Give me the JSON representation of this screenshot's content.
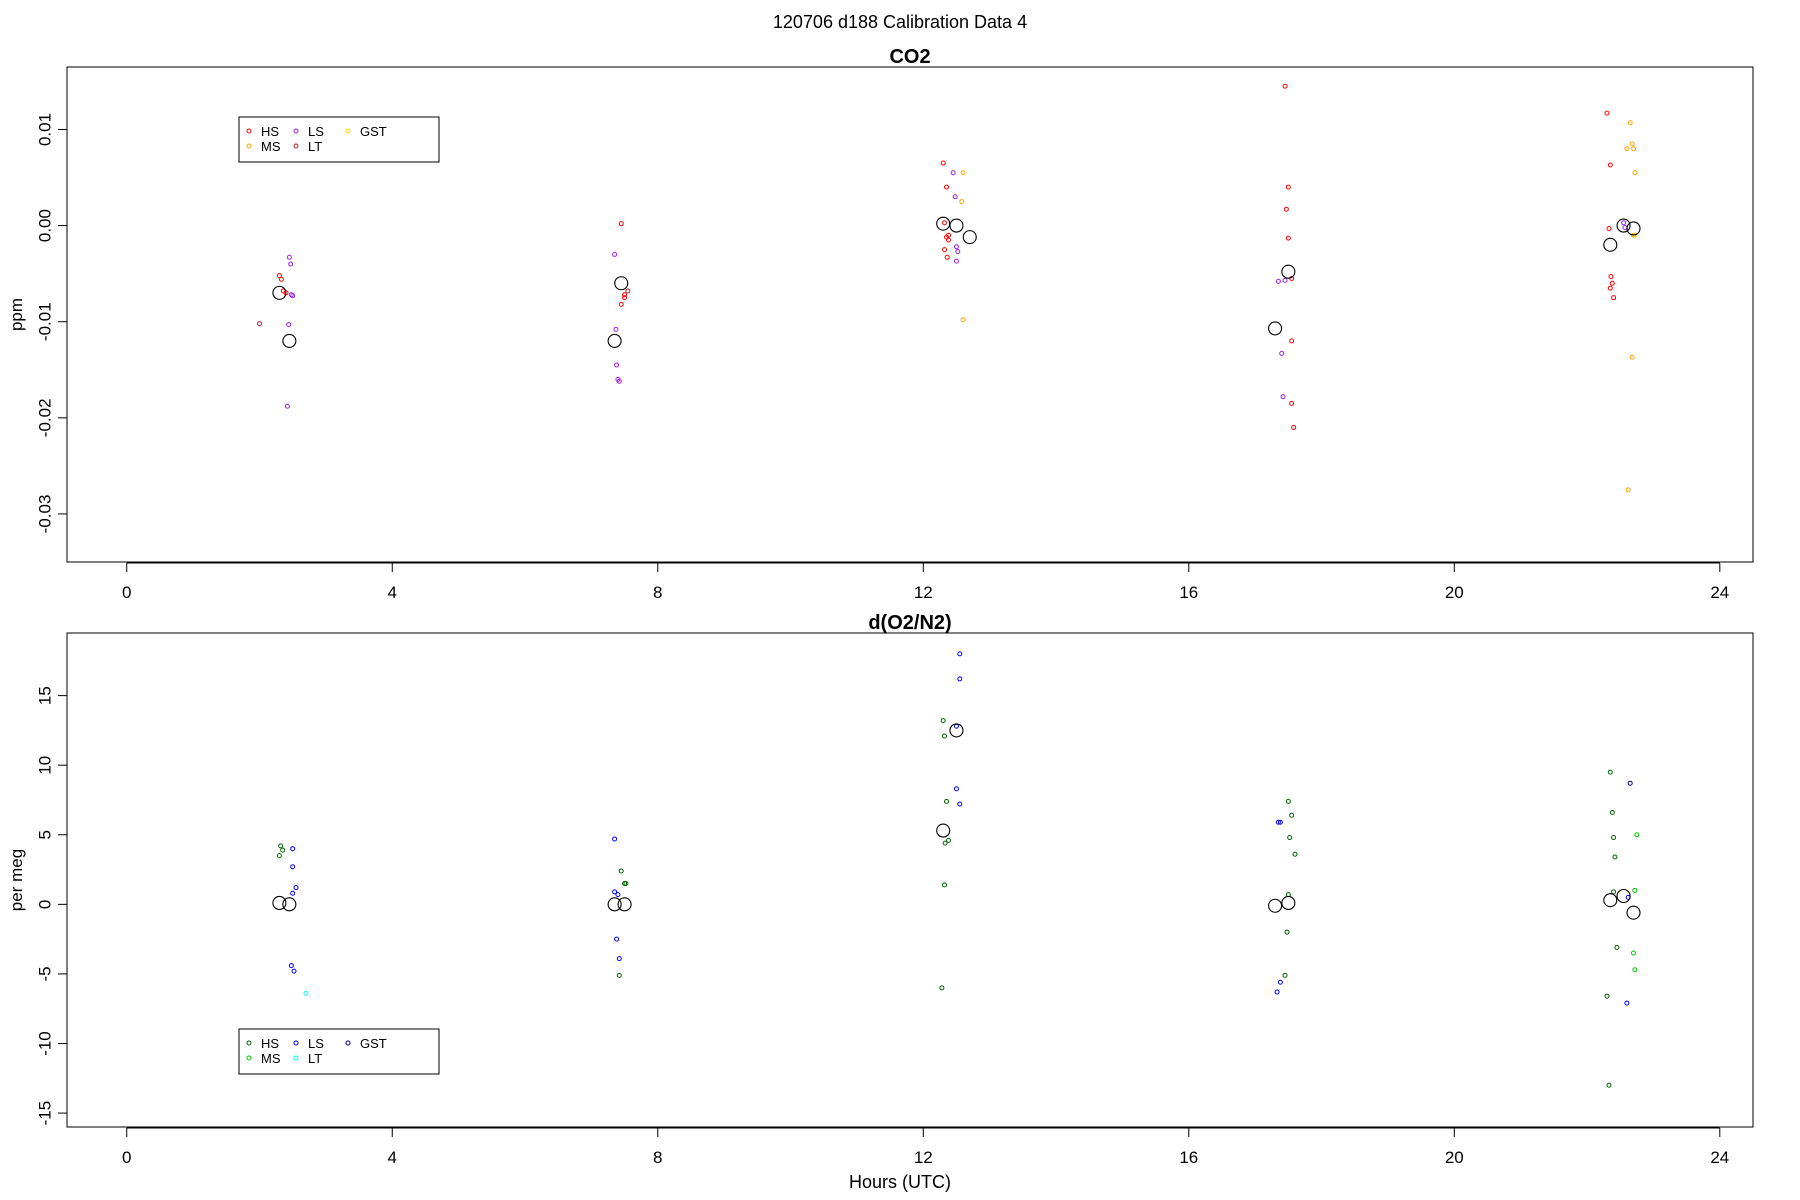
{
  "figure_title": "120706   d188   Calibration Data 4",
  "x_axis_label": "Hours (UTC)",
  "chart_data": [
    {
      "type": "scatter",
      "title": "CO2",
      "xlabel": "",
      "ylabel": "ppm",
      "xlim": [
        -0.9,
        24.5
      ],
      "ylim": [
        -0.035,
        0.0165
      ],
      "x_ticks": [
        "0",
        "4",
        "8",
        "12",
        "16",
        "20",
        "24"
      ],
      "x_tick_values": [
        0,
        4,
        8,
        12,
        16,
        20,
        24
      ],
      "y_ticks": [
        "-0.03",
        "-0.02",
        "-0.01",
        "0.00",
        "0.01"
      ],
      "y_tick_values": [
        -0.03,
        -0.02,
        -0.01,
        0.0,
        0.01
      ],
      "legend": {
        "position": "top-left",
        "entries": [
          {
            "name": "HS",
            "color": "#ff0000"
          },
          {
            "name": "MS",
            "color": "#ffa500"
          },
          {
            "name": "LS",
            "color": "#a020f0"
          },
          {
            "name": "LT",
            "color": "#b22222"
          },
          {
            "name": "GST",
            "color": "#ffd700"
          }
        ]
      },
      "series": [
        {
          "name": "HS",
          "color": "#ff0000",
          "x": [
            2.3,
            2.33,
            2.36,
            2.4,
            7.45,
            7.5,
            7.45,
            7.5,
            12.3,
            12.35,
            12.32,
            12.35,
            12.38,
            12.32,
            12.36,
            12.38,
            17.45,
            17.5,
            17.47,
            17.5,
            17.55,
            17.55,
            17.58,
            17.55,
            22.3,
            22.35,
            22.33,
            22.36,
            22.38,
            22.35,
            22.4
          ],
          "y": [
            -0.0052,
            -0.0056,
            -0.0068,
            -0.007,
            0.0002,
            -0.0075,
            -0.0082,
            -0.0072,
            0.0065,
            0.004,
            0.0003,
            -0.0012,
            -0.0015,
            -0.0025,
            -0.0033,
            -0.001,
            0.0145,
            0.004,
            0.0017,
            -0.0013,
            -0.012,
            -0.0185,
            -0.021,
            -0.0055,
            0.0117,
            0.0063,
            -0.0003,
            -0.0053,
            -0.006,
            -0.0065,
            -0.0075
          ]
        },
        {
          "name": "MS",
          "color": "#ffa500",
          "x": [
            12.6,
            12.58,
            12.6,
            22.65,
            22.68,
            22.7,
            22.72,
            22.7,
            22.68,
            22.62,
            22.6
          ],
          "y": [
            0.0055,
            0.0025,
            -0.0098,
            0.0107,
            0.0085,
            0.008,
            0.0055,
            -0.001,
            -0.0137,
            -0.0275,
            0.008
          ]
        },
        {
          "name": "LS",
          "color": "#a020f0",
          "x": [
            2.45,
            2.47,
            2.48,
            2.5,
            2.44,
            2.42,
            7.35,
            7.37,
            7.38,
            7.4,
            7.42,
            12.45,
            12.48,
            12.5,
            12.52,
            12.5,
            17.35,
            17.4,
            17.42,
            17.45,
            22.55,
            22.57
          ],
          "y": [
            -0.0033,
            -0.004,
            -0.0072,
            -0.0073,
            -0.0103,
            -0.0188,
            -0.003,
            -0.0108,
            -0.0145,
            -0.016,
            -0.0162,
            0.0055,
            0.003,
            -0.0022,
            -0.0027,
            -0.0037,
            -0.0058,
            -0.0133,
            -0.0178,
            -0.0057,
            0.0003,
            -0.0002
          ]
        },
        {
          "name": "LT",
          "color": "#b22222",
          "x": [
            2.0,
            7.55
          ],
          "y": [
            -0.0102,
            -0.0068
          ]
        },
        {
          "name": "GST",
          "color": "#ffd700",
          "x": [
            22.72
          ],
          "y": [
            -0.001
          ]
        },
        {
          "name": "",
          "color": "#000000",
          "large": true,
          "x": [
            2.3,
            2.45,
            7.35,
            7.45,
            12.3,
            12.5,
            12.7,
            17.3,
            17.5,
            22.35,
            22.55,
            22.7
          ],
          "y": [
            -0.007,
            -0.012,
            -0.012,
            -0.006,
            0.0002,
            0.0,
            -0.0012,
            -0.0107,
            -0.0048,
            -0.002,
            0.0,
            -0.0003
          ]
        }
      ]
    },
    {
      "type": "scatter",
      "title": "d(O2/N2)",
      "xlabel": "Hours (UTC)",
      "ylabel": "per meg",
      "xlim": [
        -0.9,
        24.5
      ],
      "ylim": [
        -16,
        19.5
      ],
      "x_ticks": [
        "0",
        "4",
        "8",
        "12",
        "16",
        "20",
        "24"
      ],
      "x_tick_values": [
        0,
        4,
        8,
        12,
        16,
        20,
        24
      ],
      "y_ticks": [
        "-15",
        "-10",
        "-5",
        "0",
        "5",
        "10",
        "15"
      ],
      "y_tick_values": [
        -15,
        -10,
        -5,
        0,
        5,
        10,
        15
      ],
      "legend": {
        "position": "bottom-left",
        "entries": [
          {
            "name": "HS",
            "color": "#006400"
          },
          {
            "name": "MS",
            "color": "#00c800"
          },
          {
            "name": "LS",
            "color": "#0000ff"
          },
          {
            "name": "LT",
            "color": "#00ffff"
          },
          {
            "name": "GST",
            "color": "#000080"
          }
        ]
      },
      "series": [
        {
          "name": "HS",
          "color": "#006400",
          "x": [
            2.3,
            2.32,
            2.35,
            7.45,
            7.5,
            7.52,
            7.42,
            12.3,
            12.32,
            12.35,
            12.38,
            12.33,
            12.32,
            12.28,
            17.5,
            17.55,
            17.52,
            17.6,
            17.5,
            17.48,
            17.45,
            22.35,
            22.38,
            22.4,
            22.42,
            22.4,
            22.45,
            22.3,
            22.33
          ],
          "y": [
            3.5,
            4.2,
            3.9,
            2.4,
            1.5,
            1.5,
            -5.1,
            13.2,
            12.1,
            7.4,
            4.6,
            4.4,
            1.4,
            -6.0,
            7.4,
            6.4,
            4.8,
            3.6,
            0.7,
            -2.0,
            -5.1,
            9.5,
            6.6,
            4.8,
            3.4,
            0.9,
            -3.1,
            -6.6,
            -13.0
          ]
        },
        {
          "name": "MS",
          "color": "#00c800",
          "x": [
            22.75,
            22.72,
            22.7,
            22.72
          ],
          "y": [
            5.0,
            1.0,
            -3.5,
            -4.7
          ]
        },
        {
          "name": "LS",
          "color": "#0000ff",
          "x": [
            2.5,
            2.5,
            2.55,
            2.5,
            2.48,
            2.52,
            7.35,
            7.35,
            7.4,
            7.38,
            7.42,
            12.55,
            12.55,
            12.5,
            12.55,
            12.5,
            17.35,
            17.38,
            17.38,
            17.33,
            22.62,
            22.6
          ],
          "y": [
            4.0,
            2.7,
            1.2,
            0.8,
            -4.4,
            -4.8,
            4.7,
            0.9,
            0.7,
            -2.5,
            -3.9,
            18.0,
            16.2,
            8.3,
            7.2,
            12.8,
            5.9,
            5.9,
            -5.6,
            -6.3,
            0.5,
            -7.1
          ]
        },
        {
          "name": "LT",
          "color": "#00ffff",
          "x": [
            2.7
          ],
          "y": [
            -6.4
          ]
        },
        {
          "name": "GST",
          "color": "#000080",
          "x": [
            22.65
          ],
          "y": [
            8.7
          ]
        },
        {
          "name": "",
          "color": "#000000",
          "large": true,
          "x": [
            2.3,
            2.45,
            7.35,
            7.5,
            12.3,
            12.5,
            17.3,
            17.5,
            22.35,
            22.55,
            22.7
          ],
          "y": [
            0.1,
            0.0,
            0.0,
            0.0,
            5.3,
            12.5,
            -0.1,
            0.1,
            0.3,
            0.6,
            -0.6
          ]
        }
      ]
    }
  ]
}
